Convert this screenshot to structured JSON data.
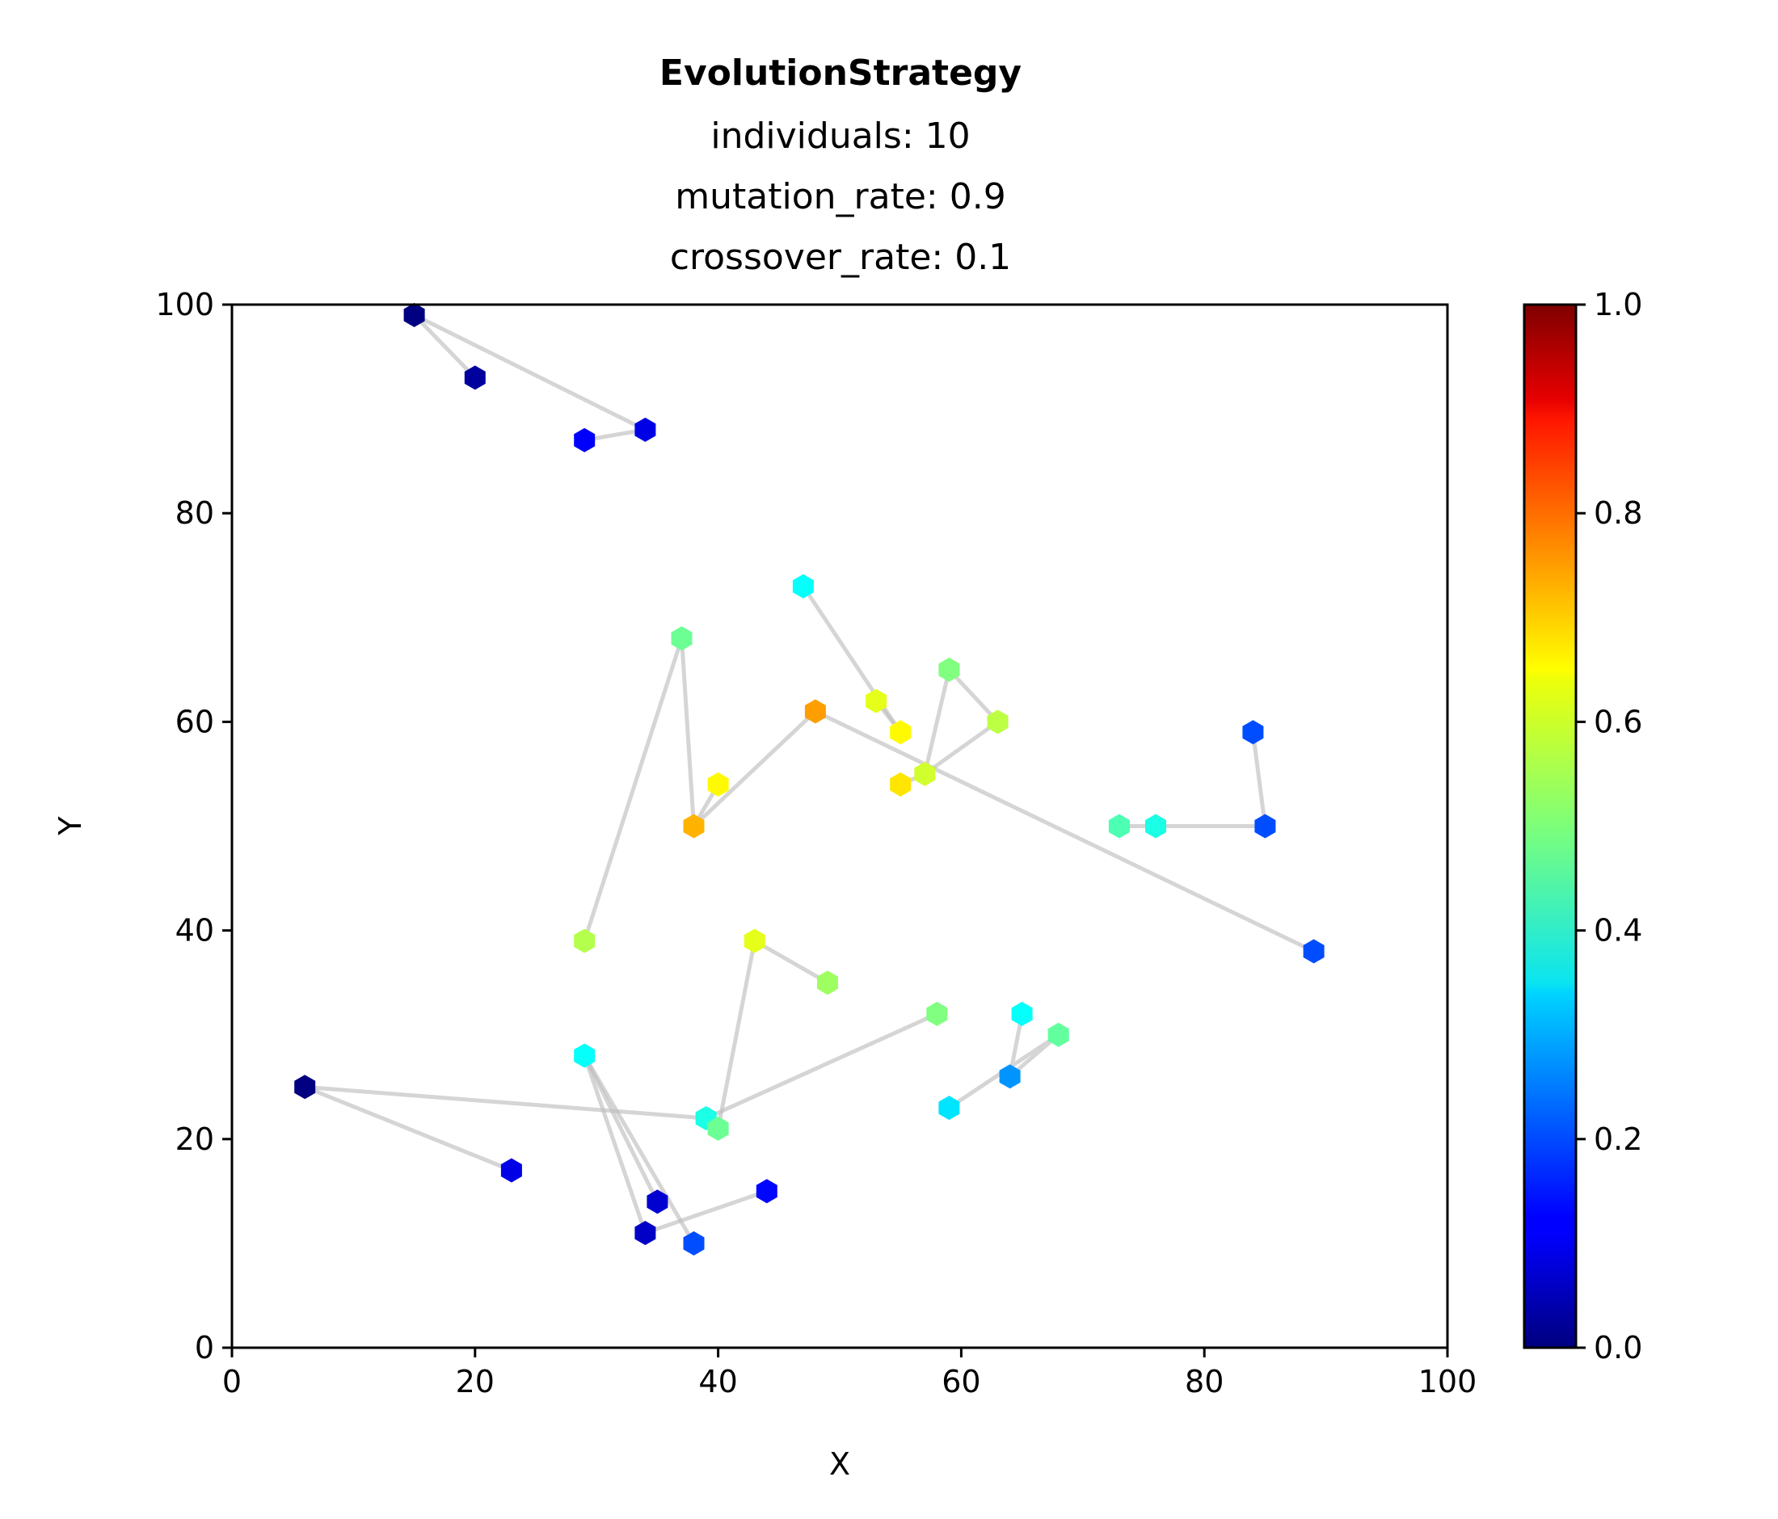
{
  "chart_data": {
    "type": "scatter",
    "title": "EvolutionStrategy",
    "subtitle_lines": [
      "individuals: 10",
      "mutation_rate: 0.9",
      "crossover_rate: 0.1"
    ],
    "xlabel": "X",
    "ylabel": "Y",
    "xlim": [
      0,
      100
    ],
    "ylim": [
      0,
      100
    ],
    "x_ticks": [
      "0",
      "20",
      "40",
      "60",
      "80",
      "100"
    ],
    "y_ticks": [
      "0",
      "20",
      "40",
      "60",
      "80",
      "100"
    ],
    "grid": false,
    "marker": "hexagon",
    "colormap": "jet",
    "colorbar": {
      "range": [
        0,
        1
      ],
      "ticks": [
        "0.0",
        "0.2",
        "0.4",
        "0.6",
        "0.8",
        "1.0"
      ]
    },
    "path_color": "#bfbfbf",
    "points": [
      {
        "x": 15,
        "y": 99,
        "c": 0.0
      },
      {
        "x": 20,
        "y": 93,
        "c": 0.03
      },
      {
        "x": 34,
        "y": 88,
        "c": 0.1
      },
      {
        "x": 29,
        "y": 87,
        "c": 0.12
      },
      {
        "x": 47,
        "y": 73,
        "c": 0.38
      },
      {
        "x": 37,
        "y": 68,
        "c": 0.48
      },
      {
        "x": 59,
        "y": 65,
        "c": 0.5
      },
      {
        "x": 53,
        "y": 62,
        "c": 0.6
      },
      {
        "x": 48,
        "y": 61,
        "c": 0.72
      },
      {
        "x": 63,
        "y": 60,
        "c": 0.56
      },
      {
        "x": 55,
        "y": 59,
        "c": 0.63
      },
      {
        "x": 84,
        "y": 59,
        "c": 0.2
      },
      {
        "x": 57,
        "y": 55,
        "c": 0.58
      },
      {
        "x": 40,
        "y": 54,
        "c": 0.63
      },
      {
        "x": 55,
        "y": 54,
        "c": 0.65
      },
      {
        "x": 38,
        "y": 50,
        "c": 0.7
      },
      {
        "x": 73,
        "y": 50,
        "c": 0.45
      },
      {
        "x": 76,
        "y": 50,
        "c": 0.4
      },
      {
        "x": 85,
        "y": 50,
        "c": 0.2
      },
      {
        "x": 29,
        "y": 39,
        "c": 0.55
      },
      {
        "x": 43,
        "y": 39,
        "c": 0.6
      },
      {
        "x": 89,
        "y": 38,
        "c": 0.2
      },
      {
        "x": 49,
        "y": 35,
        "c": 0.53
      },
      {
        "x": 58,
        "y": 32,
        "c": 0.5
      },
      {
        "x": 65,
        "y": 32,
        "c": 0.38
      },
      {
        "x": 68,
        "y": 30,
        "c": 0.47
      },
      {
        "x": 29,
        "y": 28,
        "c": 0.38
      },
      {
        "x": 64,
        "y": 26,
        "c": 0.27
      },
      {
        "x": 6,
        "y": 25,
        "c": 0.0
      },
      {
        "x": 59,
        "y": 23,
        "c": 0.35
      },
      {
        "x": 39,
        "y": 22,
        "c": 0.4
      },
      {
        "x": 40,
        "y": 21,
        "c": 0.48
      },
      {
        "x": 23,
        "y": 17,
        "c": 0.1
      },
      {
        "x": 44,
        "y": 15,
        "c": 0.13
      },
      {
        "x": 35,
        "y": 14,
        "c": 0.08
      },
      {
        "x": 34,
        "y": 11,
        "c": 0.07
      },
      {
        "x": 38,
        "y": 10,
        "c": 0.2
      }
    ],
    "paths": [
      [
        [
          34,
          88
        ],
        [
          15,
          99
        ],
        [
          20,
          93
        ]
      ],
      [
        [
          29,
          87
        ],
        [
          34,
          88
        ]
      ],
      [
        [
          29,
          39
        ],
        [
          37,
          68
        ],
        [
          38,
          50
        ],
        [
          40,
          54
        ]
      ],
      [
        [
          38,
          50
        ],
        [
          48,
          61
        ],
        [
          89,
          38
        ]
      ],
      [
        [
          47,
          73
        ],
        [
          55,
          59
        ]
      ],
      [
        [
          53,
          62
        ],
        [
          55,
          59
        ]
      ],
      [
        [
          55,
          54
        ],
        [
          57,
          55
        ],
        [
          59,
          65
        ],
        [
          63,
          60
        ],
        [
          57,
          55
        ]
      ],
      [
        [
          73,
          50
        ],
        [
          85,
          50
        ],
        [
          84,
          59
        ]
      ],
      [
        [
          6,
          25
        ],
        [
          23,
          17
        ]
      ],
      [
        [
          6,
          25
        ],
        [
          39,
          22
        ],
        [
          58,
          32
        ]
      ],
      [
        [
          29,
          28
        ],
        [
          35,
          14
        ]
      ],
      [
        [
          29,
          28
        ],
        [
          38,
          10
        ]
      ],
      [
        [
          29,
          28
        ],
        [
          34,
          11
        ],
        [
          44,
          15
        ]
      ],
      [
        [
          40,
          21
        ],
        [
          43,
          39
        ],
        [
          49,
          35
        ]
      ],
      [
        [
          59,
          23
        ],
        [
          68,
          30
        ],
        [
          64,
          26
        ],
        [
          65,
          32
        ]
      ]
    ]
  }
}
